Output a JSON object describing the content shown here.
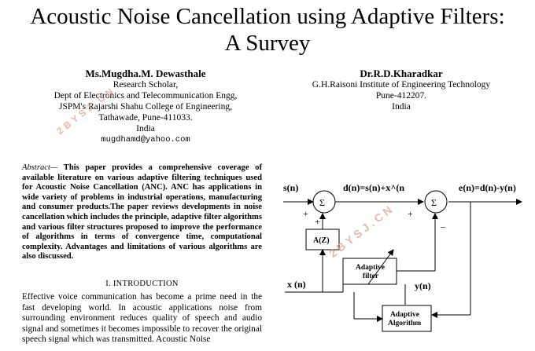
{
  "title": {
    "line1": "Acoustic Noise Cancellation using Adaptive Filters:",
    "line2": "A Survey"
  },
  "authors": [
    {
      "name": "Ms.Mugdha.M. Dewasthale",
      "lines": [
        "Research Scholar,",
        "Dept of Electronics and Telecommunication Engg,",
        "JSPM's Rajarshi Shahu College of Engineering,",
        "Tathawade, Pune-411033.",
        "India"
      ],
      "email": "mugdhamd@yahoo.com"
    },
    {
      "name": "Dr.R.D.Kharadkar",
      "lines": [
        "G.H.Raisoni Institute of Engineering Technology",
        "Pune-412207.",
        "India"
      ]
    }
  ],
  "abstract": {
    "lead": "Abstract—",
    "text": "This paper provides a comprehensive coverage of available literature on various adaptive filtering techniques used for Acoustic Noise Cancellation (ANC). ANC has applications in wide variety of problems in industrial operations, manufacturing and consumer products.The paper reviews developments in noise cancellation which includes the principle, adaptive filter algorithms and various filter structures proposed to improve the performance of algorithms in terms of convergence time, computational complexity. Advantages and limitations of various algorithms are also discussed."
  },
  "section": {
    "heading": "I.   INTRODUCTION",
    "text": "Effective voice communication has become a prime need in the fast developing world. In acoustic applications noise from surrounding environment reduces quality of speech and audio signal and sometimes it becomes impossible to recover the original speech signal which was transmitted. Acoustic Noise"
  },
  "diagram": {
    "s_label": "s(n)",
    "d_label": "d(n)=s(n)+x^(n",
    "e_label": "e(n)=d(n)-y(n)",
    "x_label": "x (n)",
    "y_label": "y(n)",
    "az_label": "A(Z)",
    "sum_symbol": "Σ",
    "plus": "+",
    "minus": "–",
    "filter_line1": "Adaptive",
    "filter_line2": "filter",
    "algo_line1": "Adaptive",
    "algo_line2": "Algorithm"
  },
  "watermark": "2BYSJ.CN"
}
